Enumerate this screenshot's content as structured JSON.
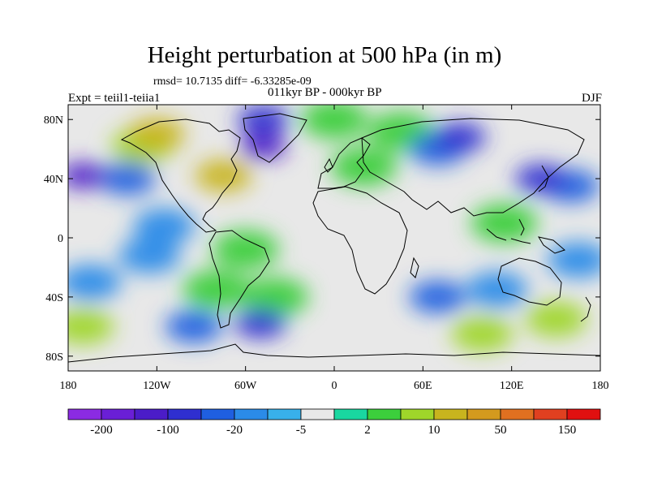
{
  "title": "Height perturbation at 500 hPa (in m)",
  "stats_line": "rmsd= 10.7135 diff= -6.33285e-09",
  "subtitle": "011kyr BP - 000kyr BP",
  "left_label": "Expt = teiil1-teiia1",
  "right_label": "DJF",
  "chart_data": {
    "type": "heatmap",
    "title": "Height perturbation at 500 hPa (in m)",
    "subtitle": "011kyr BP - 000kyr BP",
    "xlabel": "",
    "ylabel": "",
    "xlim": [
      -180,
      180
    ],
    "ylim": [
      -90,
      90
    ],
    "x_ticks": [
      {
        "value": -180,
        "label": "180"
      },
      {
        "value": -120,
        "label": "120W"
      },
      {
        "value": -60,
        "label": "60W"
      },
      {
        "value": 0,
        "label": "0"
      },
      {
        "value": 60,
        "label": "60E"
      },
      {
        "value": 120,
        "label": "120E"
      },
      {
        "value": 180,
        "label": "180"
      }
    ],
    "y_ticks": [
      {
        "value": 80,
        "label": "80N"
      },
      {
        "value": 40,
        "label": "40N"
      },
      {
        "value": 0,
        "label": "0"
      },
      {
        "value": -40,
        "label": "40S"
      },
      {
        "value": -80,
        "label": "80S"
      }
    ],
    "colorbar": {
      "colors": [
        "#8b2be2",
        "#6a1fd6",
        "#4b1cc8",
        "#2f2fd0",
        "#1f5fe0",
        "#2b8be8",
        "#38b0ea",
        "#e8e8e8",
        "#19d7a0",
        "#3ccf3c",
        "#9fd62a",
        "#c8b41e",
        "#d49a1e",
        "#e07020",
        "#e04020",
        "#e01010"
      ],
      "tick_labels": [
        {
          "index": 1,
          "label": "-200"
        },
        {
          "index": 3,
          "label": "-100"
        },
        {
          "index": 5,
          "label": "-20"
        },
        {
          "index": 7,
          "label": "-5"
        },
        {
          "index": 9,
          "label": "2"
        },
        {
          "index": 11,
          "label": "10"
        },
        {
          "index": 13,
          "label": "50"
        },
        {
          "index": 15,
          "label": "150"
        }
      ]
    },
    "anomaly_centers": [
      {
        "lon": -170,
        "lat": 42,
        "level": -5
      },
      {
        "lon": -140,
        "lat": 40,
        "level": -3
      },
      {
        "lon": -120,
        "lat": 70,
        "level": 3
      },
      {
        "lon": -130,
        "lat": 62,
        "level": 2
      },
      {
        "lon": -75,
        "lat": 42,
        "level": 3
      },
      {
        "lon": -48,
        "lat": 62,
        "level": -5
      },
      {
        "lon": -48,
        "lat": 80,
        "level": -4
      },
      {
        "lon": 0,
        "lat": 80,
        "level": 1
      },
      {
        "lon": 20,
        "lat": 48,
        "level": 1
      },
      {
        "lon": 45,
        "lat": 72,
        "level": 1
      },
      {
        "lon": 85,
        "lat": 68,
        "level": -4
      },
      {
        "lon": 70,
        "lat": 60,
        "level": -3
      },
      {
        "lon": 140,
        "lat": 40,
        "level": -4
      },
      {
        "lon": 160,
        "lat": 35,
        "level": -3
      },
      {
        "lon": 115,
        "lat": 10,
        "level": 1
      },
      {
        "lon": -115,
        "lat": 8,
        "level": -2
      },
      {
        "lon": -60,
        "lat": -8,
        "level": 1
      },
      {
        "lon": -125,
        "lat": -12,
        "level": -2
      },
      {
        "lon": -165,
        "lat": -30,
        "level": -2
      },
      {
        "lon": -80,
        "lat": -35,
        "level": 1
      },
      {
        "lon": -40,
        "lat": -40,
        "level": 1
      },
      {
        "lon": -50,
        "lat": -58,
        "level": -4
      },
      {
        "lon": -95,
        "lat": -60,
        "level": -3
      },
      {
        "lon": -170,
        "lat": -60,
        "level": 2
      },
      {
        "lon": 70,
        "lat": -40,
        "level": -3
      },
      {
        "lon": 110,
        "lat": -35,
        "level": -2
      },
      {
        "lon": 150,
        "lat": -55,
        "level": 2
      },
      {
        "lon": 100,
        "lat": -65,
        "level": 2
      },
      {
        "lon": 165,
        "lat": -15,
        "level": -2
      }
    ]
  }
}
